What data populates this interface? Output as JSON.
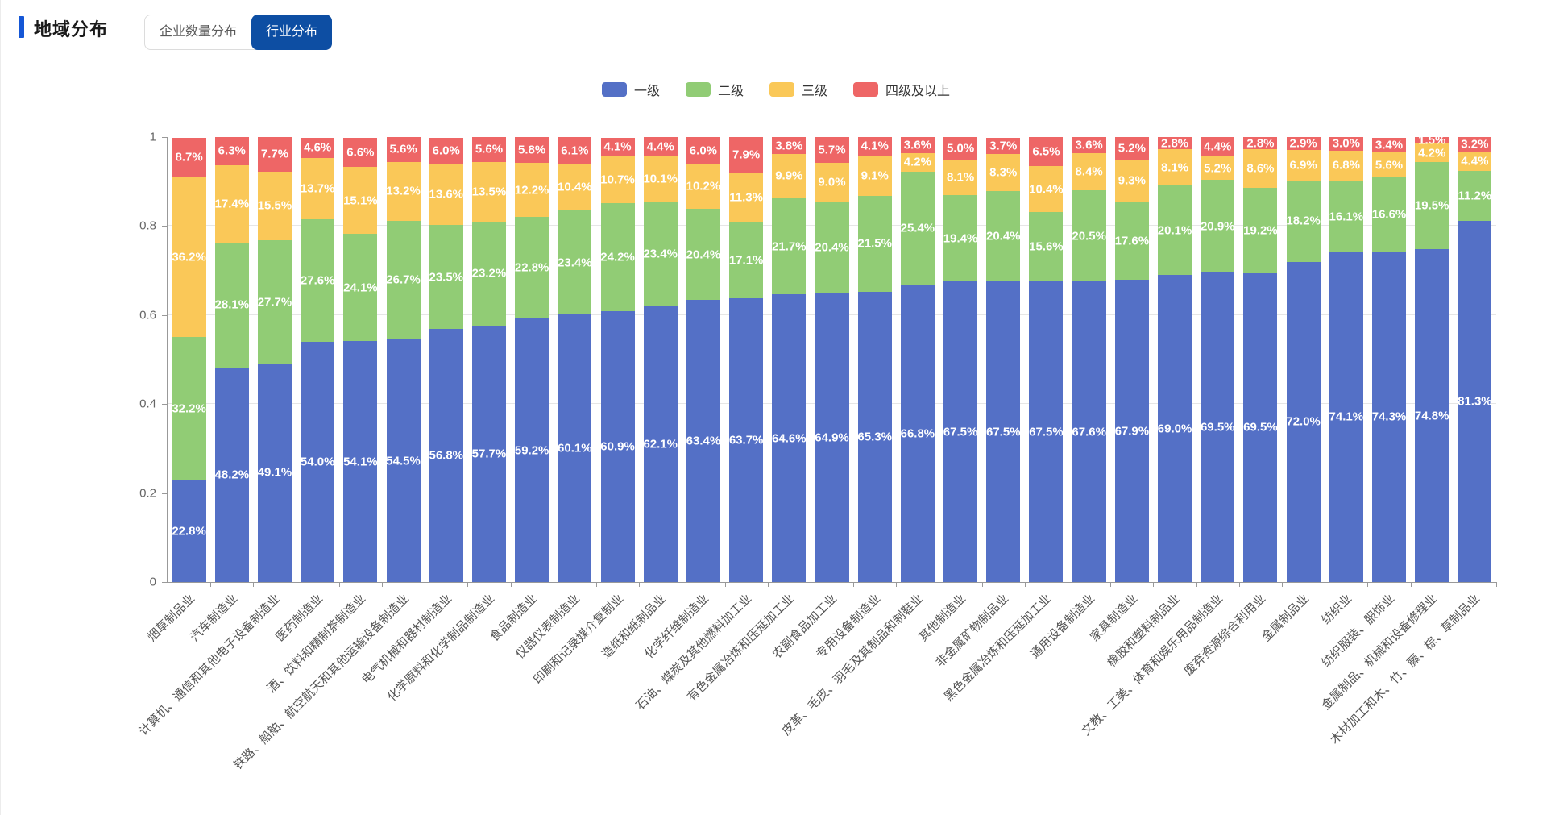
{
  "header": {
    "title": "地域分布",
    "accent_color": "#1557d6"
  },
  "tabs": [
    {
      "label": "企业数量分布",
      "active": false
    },
    {
      "label": "行业分布",
      "active": true
    }
  ],
  "colors": {
    "active_tab_bg": "#0d4ea3",
    "axis_line": "#999999",
    "grid_line": "#e6e6e6",
    "tick_text": "#666666"
  },
  "chart_data": {
    "type": "bar",
    "stacked": true,
    "normalized": true,
    "legend_position": "top",
    "grid": true,
    "ylim": [
      0,
      1
    ],
    "yticks": [
      "0",
      "0.2",
      "0.4",
      "0.6",
      "0.8",
      "1"
    ],
    "label_format": "percent",
    "categories": [
      "烟草制品业",
      "汽车制造业",
      "计算机、通信和其他电子设备制造业",
      "医药制造业",
      "酒、饮料和精制茶制造业",
      "铁路、船舶、航空航天和其他运输设备制造业",
      "电气机械和器材制造业",
      "化学原料和化学制品制造业",
      "食品制造业",
      "仪器仪表制造业",
      "印刷和记录媒介复制业",
      "造纸和纸制品业",
      "化学纤维制造业",
      "石油、煤炭及其他燃料加工业",
      "有色金属冶炼和压延加工业",
      "农副食品加工业",
      "专用设备制造业",
      "皮革、毛皮、羽毛及其制品和制鞋业",
      "其他制造业",
      "非金属矿物制品业",
      "黑色金属冶炼和压延加工业",
      "通用设备制造业",
      "家具制造业",
      "橡胶和塑料制品业",
      "文教、工美、体育和娱乐用品制造业",
      "废弃资源综合利用业",
      "金属制品业",
      "纺织业",
      "纺织服装、服饰业",
      "金属制品、机械和设备修理业",
      "木材加工和木、竹、藤、棕、草制品业"
    ],
    "series": [
      {
        "name": "一级",
        "color": "#5470c6",
        "values": [
          "22.8",
          "48.2",
          "49.1",
          "54.0",
          "54.1",
          "54.5",
          "56.8",
          "57.7",
          "59.2",
          "60.1",
          "60.9",
          "62.1",
          "63.4",
          "63.7",
          "64.6",
          "64.9",
          "65.3",
          "66.8",
          "67.5",
          "67.5",
          "67.5",
          "67.6",
          "67.9",
          "69.0",
          "69.5",
          "69.5",
          "72.0",
          "74.1",
          "74.3",
          "74.8",
          "81.3"
        ]
      },
      {
        "name": "二级",
        "color": "#91cc75",
        "values": [
          "32.2",
          "28.1",
          "27.7",
          "27.6",
          "24.1",
          "26.7",
          "23.5",
          "23.2",
          "22.8",
          "23.4",
          "24.2",
          "23.4",
          "20.4",
          "17.1",
          "21.7",
          "20.4",
          "21.5",
          "25.4",
          "19.4",
          "20.4",
          "15.6",
          "20.5",
          "17.6",
          "20.1",
          "20.9",
          "19.2",
          "18.2",
          "16.1",
          "16.6",
          "19.5",
          "11.2"
        ]
      },
      {
        "name": "三级",
        "color": "#fac858",
        "values": [
          "36.2",
          "17.4",
          "15.5",
          "13.7",
          "15.1",
          "13.2",
          "13.6",
          "13.5",
          "12.2",
          "10.4",
          "10.7",
          "10.1",
          "10.2",
          "11.3",
          "9.9",
          "9.0",
          "9.1",
          "4.2",
          "8.1",
          "8.3",
          "10.4",
          "8.4",
          "9.3",
          "8.1",
          "5.2",
          "8.6",
          "6.9",
          "6.8",
          "5.6",
          "4.2",
          "4.4"
        ]
      },
      {
        "name": "四级及以上",
        "color": "#ee6666",
        "values": [
          "8.7",
          "6.3",
          "7.7",
          "4.6",
          "6.6",
          "5.6",
          "6.0",
          "5.6",
          "5.8",
          "6.1",
          "4.1",
          "4.4",
          "6.0",
          "7.9",
          "3.8",
          "5.7",
          "4.1",
          "3.6",
          "5.0",
          "3.7",
          "6.5",
          "3.6",
          "5.2",
          "2.8",
          "4.4",
          "2.8",
          "2.9",
          "3.0",
          "3.4",
          "1.5",
          "3.2"
        ]
      }
    ]
  }
}
